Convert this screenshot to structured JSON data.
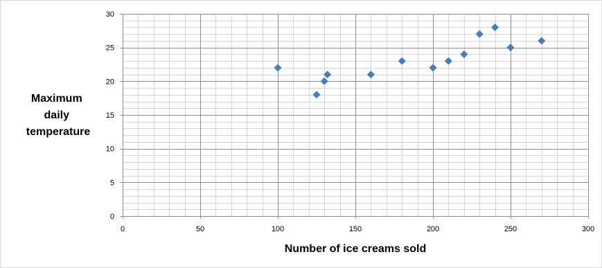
{
  "chart_data": {
    "type": "scatter",
    "title": "",
    "xlabel": "Number of ice creams sold",
    "ylabel_lines": [
      "Maximum",
      "daily",
      "temperature"
    ],
    "xlim": [
      0,
      300
    ],
    "ylim": [
      0,
      30
    ],
    "x_ticks": [
      0,
      50,
      100,
      150,
      200,
      250,
      300
    ],
    "y_ticks": [
      0,
      5,
      10,
      15,
      20,
      25,
      30
    ],
    "x_minor_step": 10,
    "y_minor_step": 1,
    "grid": "on (major and minor)",
    "legend": "none",
    "marker": "diamond",
    "marker_color": "#4a7ebb",
    "points": [
      {
        "x": 100,
        "y": 22
      },
      {
        "x": 125,
        "y": 18
      },
      {
        "x": 130,
        "y": 20
      },
      {
        "x": 132,
        "y": 21
      },
      {
        "x": 160,
        "y": 21
      },
      {
        "x": 180,
        "y": 23
      },
      {
        "x": 200,
        "y": 22
      },
      {
        "x": 210,
        "y": 23
      },
      {
        "x": 220,
        "y": 24
      },
      {
        "x": 230,
        "y": 27
      },
      {
        "x": 240,
        "y": 28
      },
      {
        "x": 250,
        "y": 25
      },
      {
        "x": 270,
        "y": 26
      }
    ]
  }
}
